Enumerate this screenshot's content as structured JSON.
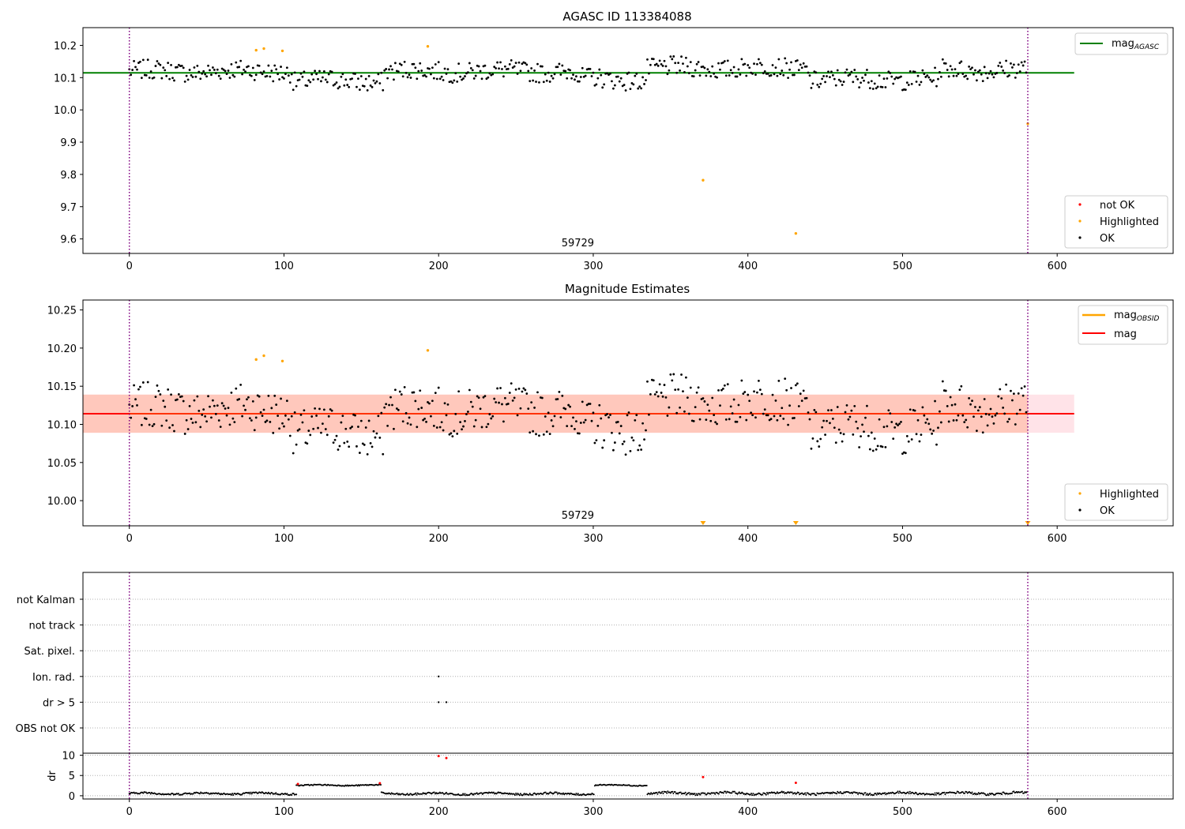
{
  "chart_data": [
    {
      "type": "scatter",
      "title": "AGASC ID 113384088",
      "ylim": [
        9.555,
        10.255
      ],
      "xlim": [
        -30,
        675
      ],
      "yticks": [
        "9.6",
        "9.7",
        "9.8",
        "9.9",
        "10.0",
        "10.1",
        "10.2"
      ],
      "ytick_values": [
        9.6,
        9.7,
        9.8,
        9.9,
        10.0,
        10.1,
        10.2
      ],
      "xticks": [
        "0",
        "100",
        "200",
        "300",
        "400",
        "500",
        "600"
      ],
      "xtick_values": [
        0,
        100,
        200,
        300,
        400,
        500,
        600
      ],
      "annotation": "59729",
      "annotation_x": 290,
      "obsid_boundaries": [
        0,
        581
      ],
      "mag_agasc": 10.115,
      "legend_top": {
        "label": "mag",
        "sub": "AGASC",
        "color": "#008000"
      },
      "legend_bottom": [
        {
          "label": "not OK",
          "color": "#ff0000"
        },
        {
          "label": "Highlighted",
          "color": "#ffa500"
        },
        {
          "label": "OK",
          "color": "#000000"
        }
      ],
      "highlighted": [
        [
          82,
          10.185
        ],
        [
          87,
          10.19
        ],
        [
          99,
          10.183
        ],
        [
          193,
          10.197
        ],
        [
          371,
          9.782
        ],
        [
          431,
          9.617
        ],
        [
          581,
          9.957
        ]
      ]
    },
    {
      "type": "scatter",
      "title": "Magnitude Estimates",
      "ylim": [
        9.967,
        10.263
      ],
      "xlim": [
        -30,
        675
      ],
      "yticks": [
        "10.00",
        "10.05",
        "10.10",
        "10.15",
        "10.20",
        "10.25"
      ],
      "ytick_values": [
        10.0,
        10.05,
        10.1,
        10.15,
        10.2,
        10.25
      ],
      "xticks": [
        "0",
        "100",
        "200",
        "300",
        "400",
        "500",
        "600"
      ],
      "xtick_values": [
        0,
        100,
        200,
        300,
        400,
        500,
        600
      ],
      "annotation": "59729",
      "annotation_x": 290,
      "obsid_boundaries": [
        0,
        581
      ],
      "mag": 10.114,
      "mag_obsid": 10.114,
      "band_inner": [
        10.089,
        10.139
      ],
      "band_outer": [
        10.089,
        10.139
      ],
      "legend_top": [
        {
          "label": "mag",
          "sub": "OBSID",
          "color": "#ffa500"
        },
        {
          "label": "mag",
          "sub": "",
          "color": "#ff0000"
        }
      ],
      "legend_bottom": [
        {
          "label": "Highlighted",
          "color": "#ffa500"
        },
        {
          "label": "OK",
          "color": "#000000"
        }
      ],
      "highlighted": [
        [
          82,
          10.185
        ],
        [
          87,
          10.19
        ],
        [
          99,
          10.183
        ],
        [
          193,
          10.197
        ]
      ],
      "out_of_range_markers": [
        371,
        431,
        581
      ]
    },
    {
      "type": "scatter",
      "title": "",
      "categories": [
        "not Kalman",
        "not track",
        "Sat. pixel.",
        "Ion. rad.",
        "dr > 5",
        "OBS not OK"
      ],
      "flag_points": [
        {
          "category": "Ion. rad.",
          "x": 200
        },
        {
          "category": "dr > 5",
          "x": 200
        },
        {
          "category": "dr > 5",
          "x": 205
        }
      ],
      "obsid_boundaries": [
        0,
        581
      ],
      "xlim": [
        -30,
        675
      ]
    },
    {
      "type": "scatter",
      "title": "",
      "ylabel": "dr",
      "ylim": [
        -0.8,
        10.5
      ],
      "yticks": [
        "0",
        "5",
        "10"
      ],
      "ytick_values": [
        0,
        5,
        10
      ],
      "xticks": [
        "0",
        "100",
        "200",
        "300",
        "400",
        "500",
        "600"
      ],
      "xtick_values": [
        0,
        100,
        200,
        300,
        400,
        500,
        600
      ],
      "xlim": [
        -30,
        675
      ],
      "obsid_boundaries": [
        0,
        581
      ],
      "not_ok_points": [
        [
          109,
          2.9
        ],
        [
          162,
          3.1
        ],
        [
          200,
          9.8
        ],
        [
          205,
          9.3
        ],
        [
          371,
          4.6
        ],
        [
          431,
          3.2
        ]
      ],
      "segments": [
        {
          "start": 0,
          "end": 108,
          "level": 0.55,
          "amp": 0.45
        },
        {
          "start": 108,
          "end": 163,
          "level": 2.6,
          "amp": 0.25
        },
        {
          "start": 163,
          "end": 301,
          "level": 0.5,
          "amp": 0.45
        },
        {
          "start": 301,
          "end": 335,
          "level": 2.6,
          "amp": 0.25
        },
        {
          "start": 335,
          "end": 581,
          "level": 0.6,
          "amp": 0.55
        }
      ]
    }
  ]
}
